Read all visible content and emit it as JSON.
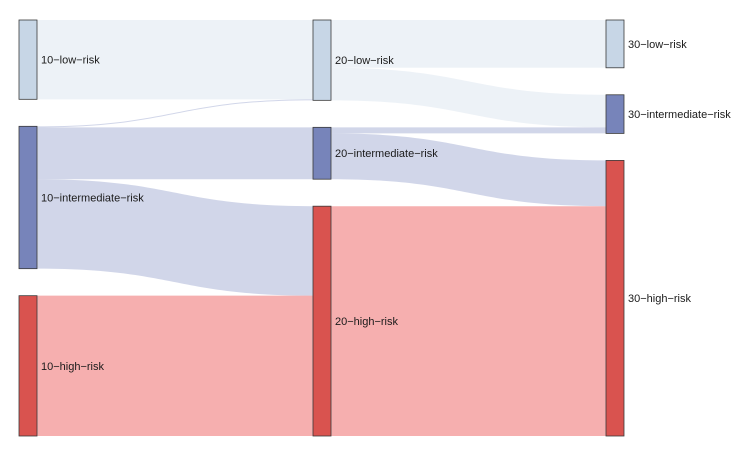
{
  "chart_data": {
    "type": "sankey",
    "title": "",
    "nodes": [
      {
        "id": "10-low-risk",
        "label": "10−low−risk",
        "stage": 0,
        "value": 78,
        "color": "#c7d6e6"
      },
      {
        "id": "10-intermediate-risk",
        "label": "10−intermediate−risk",
        "stage": 0,
        "value": 140,
        "color": "#7784ba"
      },
      {
        "id": "10-high-risk",
        "label": "10−high−risk",
        "stage": 0,
        "value": 138,
        "color": "#d9534f"
      },
      {
        "id": "20-low-risk",
        "label": "20−low−risk",
        "stage": 1,
        "value": 79,
        "color": "#c7d6e6"
      },
      {
        "id": "20-intermediate-risk",
        "label": "20−intermediate−risk",
        "stage": 1,
        "value": 51,
        "color": "#7784ba"
      },
      {
        "id": "20-high-risk",
        "label": "20−high−risk",
        "stage": 1,
        "value": 226,
        "color": "#d9534f"
      },
      {
        "id": "30-low-risk",
        "label": "30−low−risk",
        "stage": 2,
        "value": 47,
        "color": "#c7d6e6"
      },
      {
        "id": "30-intermediate-risk",
        "label": "30−intermediate−risk",
        "stage": 2,
        "value": 38,
        "color": "#7784ba"
      },
      {
        "id": "30-high-risk",
        "label": "30−high−risk",
        "stage": 2,
        "value": 271,
        "color": "#d9534f"
      }
    ],
    "links": [
      {
        "source": "10-low-risk",
        "target": "20-low-risk",
        "value": 78
      },
      {
        "source": "10-intermediate-risk",
        "target": "20-low-risk",
        "value": 1
      },
      {
        "source": "10-intermediate-risk",
        "target": "20-intermediate-risk",
        "value": 51
      },
      {
        "source": "10-intermediate-risk",
        "target": "20-high-risk",
        "value": 88
      },
      {
        "source": "10-high-risk",
        "target": "20-high-risk",
        "value": 138
      },
      {
        "source": "20-low-risk",
        "target": "30-low-risk",
        "value": 47
      },
      {
        "source": "20-low-risk",
        "target": "30-intermediate-risk",
        "value": 32
      },
      {
        "source": "20-intermediate-risk",
        "target": "30-intermediate-risk",
        "value": 6
      },
      {
        "source": "20-intermediate-risk",
        "target": "30-high-risk",
        "value": 45
      },
      {
        "source": "20-high-risk",
        "target": "30-high-risk",
        "value": 226
      }
    ]
  }
}
